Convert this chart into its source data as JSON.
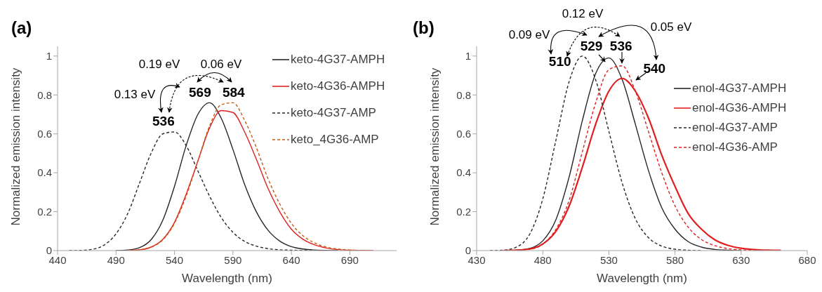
{
  "chart_data": [
    {
      "type": "line",
      "title": "(a)",
      "xlabel": "Wavelength (nm)",
      "ylabel": "Normalized emission intensity",
      "series": [
        {
          "name": "keto-4G37-AMPH",
          "color": "#262626",
          "line_style": "solid",
          "x": [
            490,
            500,
            510,
            520,
            530,
            540,
            550,
            560,
            570,
            580,
            590,
            600,
            610,
            620,
            630,
            640,
            650,
            660,
            670,
            680
          ],
          "values": [
            0,
            0.003,
            0.015,
            0.056,
            0.156,
            0.33,
            0.54,
            0.7,
            0.76,
            0.68,
            0.52,
            0.34,
            0.2,
            0.105,
            0.049,
            0.02,
            0.008,
            0.003,
            0.001,
            0
          ]
        },
        {
          "name": "keto-4G36-AMPH",
          "color": "#e02020",
          "line_style": "solid",
          "x": [
            500,
            510,
            520,
            530,
            540,
            550,
            560,
            570,
            580,
            590,
            600,
            610,
            620,
            630,
            640,
            650,
            660,
            670,
            680,
            690,
            700,
            710
          ],
          "values": [
            0.001,
            0.004,
            0.018,
            0.058,
            0.145,
            0.29,
            0.46,
            0.63,
            0.72,
            0.71,
            0.61,
            0.47,
            0.32,
            0.2,
            0.11,
            0.058,
            0.029,
            0.013,
            0.005,
            0.002,
            0.001,
            0
          ]
        },
        {
          "name": "keto-4G37-AMP",
          "color": "#262626",
          "line_style": "dashed",
          "x": [
            450,
            460,
            470,
            480,
            490,
            500,
            510,
            520,
            530,
            540,
            550,
            560,
            570,
            580,
            590,
            600,
            610,
            620,
            630,
            640,
            650,
            660
          ],
          "values": [
            0,
            0.001,
            0.007,
            0.029,
            0.086,
            0.19,
            0.345,
            0.5,
            0.6,
            0.61,
            0.54,
            0.41,
            0.28,
            0.17,
            0.094,
            0.047,
            0.023,
            0.01,
            0.004,
            0.002,
            0.001,
            0
          ]
        },
        {
          "name": "keto_4G36-AMP",
          "color": "#c55a11",
          "line_style": "dashed",
          "x": [
            500,
            510,
            520,
            530,
            540,
            550,
            560,
            570,
            580,
            590,
            600,
            610,
            620,
            630,
            640,
            650,
            660,
            670,
            680,
            690,
            700,
            710
          ],
          "values": [
            0.001,
            0.004,
            0.017,
            0.055,
            0.14,
            0.28,
            0.46,
            0.64,
            0.75,
            0.76,
            0.67,
            0.53,
            0.37,
            0.24,
            0.14,
            0.076,
            0.039,
            0.018,
            0.008,
            0.003,
            0.001,
            0
          ]
        }
      ],
      "xlim": [
        440,
        730
      ],
      "xticks": [
        440,
        490,
        540,
        590,
        640,
        690
      ],
      "ylim": [
        0,
        1.05
      ],
      "yticks": [
        0,
        0.2,
        0.4,
        0.6,
        0.8,
        1
      ],
      "grid": false,
      "legend": "top right",
      "marker": "none",
      "annotations": [
        "0.19 eV",
        "0.06 eV",
        "0.13 eV",
        {
          "text": "536",
          "x": 536,
          "y": 0.62
        },
        {
          "text": "569",
          "x": 569,
          "y": 0.76
        },
        {
          "text": "584",
          "x": 584,
          "y": 0.73
        }
      ]
    },
    {
      "type": "line",
      "title": "(b)",
      "xlabel": "Wavelength (nm)",
      "ylabel": "Normalized emission intensity",
      "series": [
        {
          "name": "enol-4G37-AMPH",
          "color": "#262626",
          "line_style": "solid",
          "x": [
            450,
            460,
            470,
            480,
            490,
            500,
            510,
            520,
            530,
            540,
            550,
            560,
            570,
            580,
            590,
            600,
            610,
            620,
            630
          ],
          "values": [
            0,
            0.002,
            0.011,
            0.05,
            0.16,
            0.38,
            0.67,
            0.91,
            0.99,
            0.88,
            0.65,
            0.41,
            0.22,
            0.11,
            0.046,
            0.018,
            0.006,
            0.002,
            0
          ]
        },
        {
          "name": "enol-4G36-AMPH",
          "color": "#e02020",
          "line_style": "solid",
          "x": [
            450,
            460,
            470,
            480,
            490,
            500,
            510,
            520,
            530,
            540,
            550,
            560,
            570,
            580,
            590,
            600,
            610,
            620,
            630,
            640,
            650,
            660
          ],
          "values": [
            0,
            0.002,
            0.008,
            0.034,
            0.1,
            0.23,
            0.43,
            0.65,
            0.82,
            0.885,
            0.82,
            0.68,
            0.49,
            0.33,
            0.19,
            0.11,
            0.056,
            0.027,
            0.012,
            0.005,
            0.002,
            0.001
          ]
        },
        {
          "name": "enol-4G37-AMP",
          "color": "#262626",
          "line_style": "dashed",
          "x": [
            440,
            450,
            460,
            470,
            480,
            490,
            500,
            510,
            520,
            530,
            540,
            550,
            560,
            570,
            580,
            590,
            600
          ],
          "values": [
            0,
            0.002,
            0.018,
            0.083,
            0.265,
            0.569,
            0.87,
            1,
            0.878,
            0.613,
            0.349,
            0.164,
            0.066,
            0.023,
            0.007,
            0.002,
            0
          ]
        },
        {
          "name": "enol-4G36-AMP",
          "color": "#e02020",
          "line_style": "dashed",
          "x": [
            450,
            460,
            470,
            480,
            490,
            500,
            510,
            520,
            530,
            540,
            550,
            560,
            570,
            580,
            590,
            600,
            610,
            620,
            630,
            640,
            650
          ],
          "values": [
            0,
            0.001,
            0.007,
            0.033,
            0.11,
            0.26,
            0.51,
            0.76,
            0.93,
            0.95,
            0.82,
            0.61,
            0.4,
            0.23,
            0.12,
            0.057,
            0.026,
            0.01,
            0.004,
            0.001,
            0
          ]
        }
      ],
      "xlim": [
        430,
        680
      ],
      "xticks": [
        430,
        480,
        530,
        580,
        630,
        680
      ],
      "ylim": [
        0,
        1.05
      ],
      "yticks": [
        0,
        0.2,
        0.4,
        0.6,
        0.8,
        1
      ],
      "grid": false,
      "legend": "top right",
      "marker": "none",
      "annotations": [
        "0.12 eV",
        "0.05 eV",
        "0.09 eV",
        {
          "text": "510",
          "x": 510,
          "y": 1
        },
        {
          "text": "529",
          "x": 529,
          "y": 0.99
        },
        {
          "text": "536",
          "x": 536,
          "y": 0.96
        },
        {
          "text": "540",
          "x": 540,
          "y": 0.885
        }
      ]
    }
  ]
}
